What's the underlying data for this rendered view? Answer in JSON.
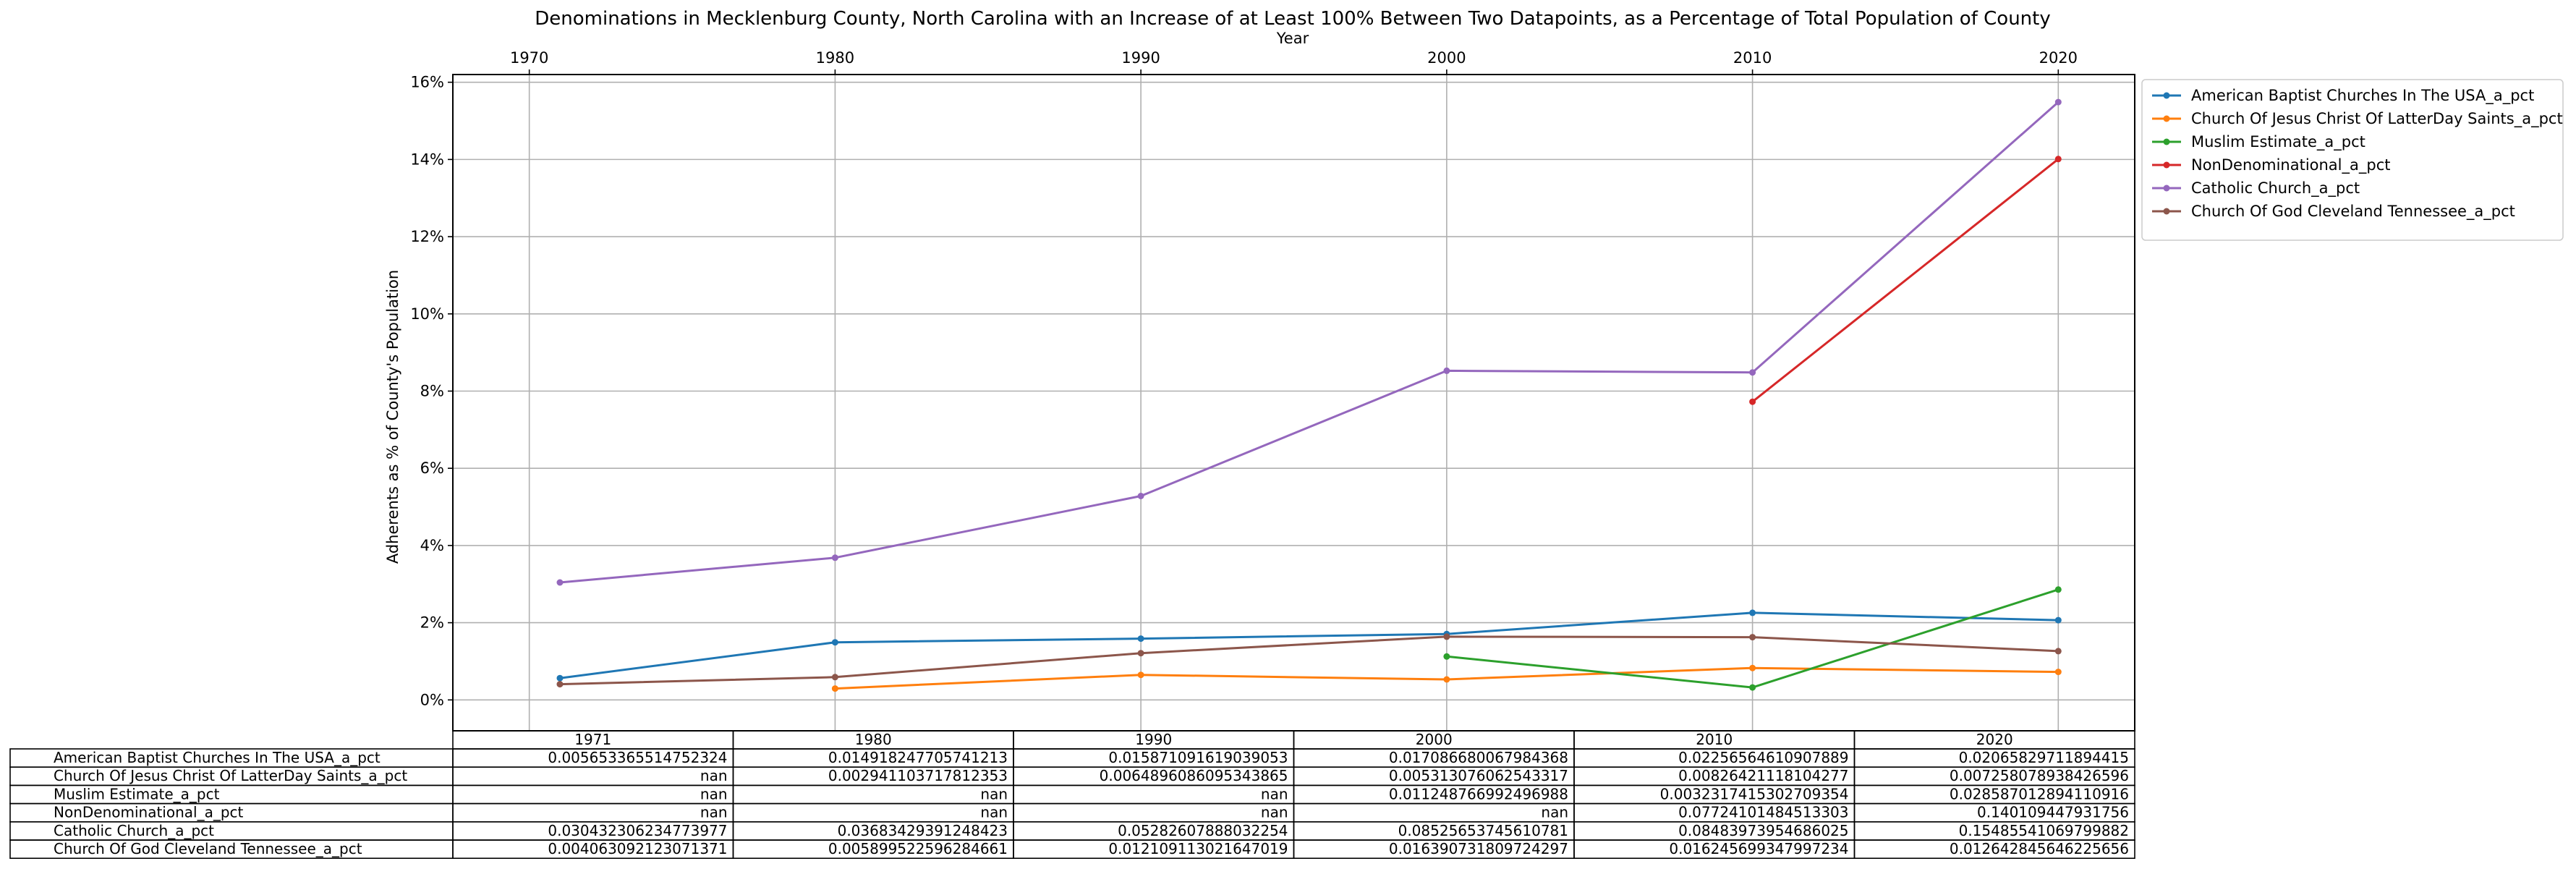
{
  "chart_data": {
    "type": "line",
    "title": "Denominations in Mecklenburg County, North Carolina with an Increase of at Least 100% Between Two Datapoints, as a Percentage of Total Population of County",
    "xlabel": "Year",
    "ylabel": "Adherents as % of County's Population",
    "x_ticks": [
      "1970",
      "1980",
      "1990",
      "2000",
      "2010",
      "2020"
    ],
    "y_ticks": [
      "0%",
      "2%",
      "4%",
      "6%",
      "8%",
      "10%",
      "12%",
      "14%",
      "16%"
    ],
    "xlim": [
      1967.5,
      2022.5
    ],
    "ylim": [
      -0.008,
      0.162
    ],
    "grid": true,
    "legend_position": "outside-right-top",
    "x": [
      1971,
      1980,
      1990,
      2000,
      2010,
      2020
    ],
    "series": [
      {
        "name": "American Baptist Churches In The USA_a_pct",
        "color": "#1f77b4",
        "values": [
          0.005653365514752324,
          0.014918247705741213,
          0.015871091619039053,
          0.017086680067984368,
          0.02256564610907889,
          0.02065829711894415
        ]
      },
      {
        "name": "Church Of Jesus Christ Of LatterDay Saints_a_pct",
        "color": "#ff7f0e",
        "values": [
          null,
          0.002941103717812353,
          0.0064896086095343865,
          0.005313076062543317,
          0.00826421118104277,
          0.007258078938426596
        ]
      },
      {
        "name": "Muslim Estimate_a_pct",
        "color": "#2ca02c",
        "values": [
          null,
          null,
          null,
          0.011248766992496988,
          0.0032317415302709354,
          0.028587012894110916
        ]
      },
      {
        "name": "NonDenominational_a_pct",
        "color": "#d62728",
        "values": [
          null,
          null,
          null,
          null,
          0.07724101484513303,
          0.140109447931756
        ]
      },
      {
        "name": "Catholic Church_a_pct",
        "color": "#9467bd",
        "values": [
          0.030432306234773977,
          0.03683429391248423,
          0.05282607888032254,
          0.08525653745610781,
          0.08483973954686025,
          0.15485541069799882
        ]
      },
      {
        "name": "Church Of God Cleveland Tennessee_a_pct",
        "color": "#8c564b",
        "values": [
          0.004063092123071371,
          0.005899522596284661,
          0.012109113021647019,
          0.016390731809724297,
          0.016245699347997234,
          0.012642845646225656
        ]
      }
    ],
    "table": {
      "columns": [
        "1971",
        "1980",
        "1990",
        "2000",
        "2010",
        "2020"
      ],
      "rows": [
        {
          "label": "American Baptist Churches In The USA_a_pct",
          "cells": [
            "0.005653365514752324",
            "0.014918247705741213",
            "0.015871091619039053",
            "0.017086680067984368",
            "0.02256564610907889",
            "0.02065829711894415"
          ]
        },
        {
          "label": "Church Of Jesus Christ Of LatterDay Saints_a_pct",
          "cells": [
            "nan",
            "0.002941103717812353",
            "0.0064896086095343865",
            "0.005313076062543317",
            "0.00826421118104277",
            "0.007258078938426596"
          ]
        },
        {
          "label": "Muslim Estimate_a_pct",
          "cells": [
            "nan",
            "nan",
            "nan",
            "0.011248766992496988",
            "0.0032317415302709354",
            "0.028587012894110916"
          ]
        },
        {
          "label": "NonDenominational_a_pct",
          "cells": [
            "nan",
            "nan",
            "nan",
            "nan",
            "0.07724101484513303",
            "0.140109447931756"
          ]
        },
        {
          "label": "Catholic Church_a_pct",
          "cells": [
            "0.030432306234773977",
            "0.03683429391248423",
            "0.05282607888032254",
            "0.08525653745610781",
            "0.08483973954686025",
            "0.15485541069799882"
          ]
        },
        {
          "label": "Church Of God Cleveland Tennessee_a_pct",
          "cells": [
            "0.004063092123071371",
            "0.005899522596284661",
            "0.012109113021647019",
            "0.016390731809724297",
            "0.016245699347997234",
            "0.012642845646225656"
          ]
        }
      ]
    }
  }
}
